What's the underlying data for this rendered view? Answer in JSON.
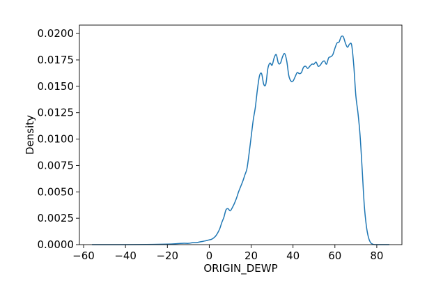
{
  "chart_data": {
    "type": "line",
    "title": "",
    "xlabel": "ORIGIN_DEWP",
    "ylabel": "Density",
    "xlim": [
      -62,
      92
    ],
    "ylim": [
      0,
      0.0208
    ],
    "xticks": [
      {
        "value": -60,
        "label": "−60"
      },
      {
        "value": -40,
        "label": "−40"
      },
      {
        "value": -20,
        "label": "−20"
      },
      {
        "value": 0,
        "label": "0"
      },
      {
        "value": 20,
        "label": "20"
      },
      {
        "value": 40,
        "label": "40"
      },
      {
        "value": 60,
        "label": "60"
      },
      {
        "value": 80,
        "label": "80"
      }
    ],
    "yticks": [
      {
        "value": 0.0,
        "label": "0.0000"
      },
      {
        "value": 0.0025,
        "label": "0.0025"
      },
      {
        "value": 0.005,
        "label": "0.0050"
      },
      {
        "value": 0.0075,
        "label": "0.0075"
      },
      {
        "value": 0.01,
        "label": "0.0100"
      },
      {
        "value": 0.0125,
        "label": "0.0125"
      },
      {
        "value": 0.015,
        "label": "0.0150"
      },
      {
        "value": 0.0175,
        "label": "0.0175"
      },
      {
        "value": 0.02,
        "label": "0.0200"
      }
    ],
    "grid": false,
    "series": [
      {
        "color": "#1f77b4",
        "x": [
          -56,
          -50,
          -40,
          -30,
          -20,
          -15,
          -12,
          -10,
          -8,
          -6,
          -4,
          -2,
          0,
          1,
          2,
          3,
          4,
          5,
          6,
          7,
          8,
          9,
          10,
          11,
          12,
          13,
          14,
          15,
          16,
          17,
          18,
          19,
          20,
          21,
          22,
          23,
          24,
          25,
          26,
          27,
          28,
          29,
          30,
          31,
          32,
          33,
          34,
          35,
          36,
          37,
          38,
          39,
          40,
          41,
          42,
          43,
          44,
          45,
          46,
          47,
          48,
          49,
          50,
          51,
          52,
          53,
          54,
          55,
          56,
          57,
          58,
          59,
          60,
          61,
          62,
          63,
          64,
          65,
          66,
          67,
          68,
          69,
          70,
          71,
          72,
          73,
          74,
          75,
          76,
          77,
          78,
          79,
          80,
          81,
          82,
          84,
          86
        ],
        "y": [
          0.0,
          0.0,
          0.0,
          2e-05,
          5e-05,
          0.0001,
          0.00013,
          0.00012,
          0.00018,
          0.0002,
          0.00028,
          0.00035,
          0.00045,
          0.0005,
          0.00062,
          0.0008,
          0.0011,
          0.0015,
          0.0021,
          0.0026,
          0.0033,
          0.0034,
          0.0032,
          0.0035,
          0.0039,
          0.0044,
          0.005,
          0.0055,
          0.006,
          0.0066,
          0.0072,
          0.0086,
          0.0102,
          0.0118,
          0.013,
          0.0147,
          0.016,
          0.0162,
          0.0152,
          0.0152,
          0.0167,
          0.0172,
          0.017,
          0.0177,
          0.018,
          0.0172,
          0.0172,
          0.0178,
          0.0181,
          0.0174,
          0.016,
          0.0155,
          0.0155,
          0.0159,
          0.0163,
          0.0162,
          0.0163,
          0.0168,
          0.0169,
          0.0167,
          0.0169,
          0.0171,
          0.0171,
          0.0173,
          0.0169,
          0.017,
          0.0173,
          0.0174,
          0.0171,
          0.0177,
          0.0178,
          0.018,
          0.0186,
          0.0191,
          0.0192,
          0.0197,
          0.0197,
          0.0191,
          0.0187,
          0.019,
          0.0189,
          0.017,
          0.0141,
          0.0125,
          0.0104,
          0.0072,
          0.0038,
          0.0018,
          0.0007,
          0.0002,
          5e-05,
          0.0,
          0.0,
          0.0,
          0.0,
          0.0,
          0.0
        ]
      }
    ]
  }
}
